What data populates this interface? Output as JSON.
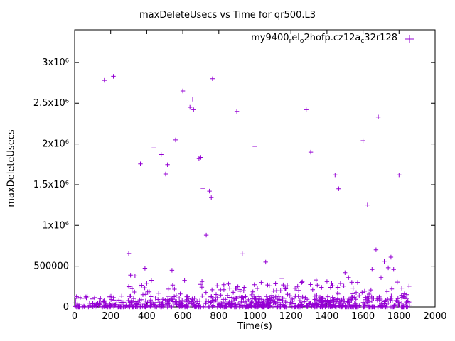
{
  "chart_data": {
    "type": "scatter",
    "title": "maxDeleteUsecs vs Time for qr500.L3",
    "xlabel": "Time(s)",
    "ylabel": "maxDeleteUsecs",
    "xlim": [
      0,
      2000
    ],
    "ylim": [
      0,
      3400000
    ],
    "grid": false,
    "legend_position": "top-right-inside",
    "xticks": [
      0,
      200,
      400,
      600,
      800,
      1000,
      1200,
      1400,
      1600,
      1800,
      2000
    ],
    "xtick_labels": [
      "0",
      "200",
      "400",
      "600",
      "800",
      "1000",
      "1200",
      "1400",
      "1600",
      "1800",
      "2000"
    ],
    "yticks": [
      0,
      500000,
      1000000,
      1500000,
      2000000,
      2500000,
      3000000
    ],
    "ytick_labels": [
      "0",
      "500000",
      "1x10⁶",
      "1.5x10⁶",
      "2x10⁶",
      "2.5x10⁶",
      "3x10⁶"
    ],
    "legend": {
      "parts": [
        {
          "t": "my9400"
        },
        {
          "s": "r"
        },
        {
          "t": "el"
        },
        {
          "s": "o"
        },
        {
          "t": "2hofp.cz12a"
        },
        {
          "s": "c"
        },
        {
          "t": "32r128"
        }
      ]
    },
    "marker": {
      "shape": "plus",
      "color": "#9400D3",
      "size": 3.2
    },
    "outliers": [
      [
        165,
        2780000
      ],
      [
        215,
        2830000
      ],
      [
        300,
        655000
      ],
      [
        310,
        390000
      ],
      [
        335,
        380000
      ],
      [
        300,
        250000
      ],
      [
        365,
        1755000
      ],
      [
        390,
        475000
      ],
      [
        400,
        290000
      ],
      [
        405,
        185000
      ],
      [
        440,
        1950000
      ],
      [
        480,
        1870000
      ],
      [
        505,
        1630000
      ],
      [
        515,
        1745000
      ],
      [
        540,
        450000
      ],
      [
        560,
        2050000
      ],
      [
        600,
        2650000
      ],
      [
        640,
        2450000
      ],
      [
        655,
        2550000
      ],
      [
        660,
        2420000
      ],
      [
        690,
        1820000
      ],
      [
        700,
        1835000
      ],
      [
        712,
        1455000
      ],
      [
        730,
        880000
      ],
      [
        748,
        1420000
      ],
      [
        758,
        1340000
      ],
      [
        765,
        2800000
      ],
      [
        790,
        260000
      ],
      [
        810,
        210000
      ],
      [
        860,
        230000
      ],
      [
        880,
        180000
      ],
      [
        900,
        2400000
      ],
      [
        930,
        650000
      ],
      [
        940,
        240000
      ],
      [
        1000,
        1970000
      ],
      [
        1035,
        300000
      ],
      [
        1060,
        550000
      ],
      [
        1080,
        260000
      ],
      [
        1120,
        200000
      ],
      [
        1150,
        350000
      ],
      [
        1180,
        260000
      ],
      [
        1230,
        230000
      ],
      [
        1260,
        300000
      ],
      [
        1285,
        2420000
      ],
      [
        1310,
        1900000
      ],
      [
        1340,
        330000
      ],
      [
        1370,
        240000
      ],
      [
        1400,
        310000
      ],
      [
        1430,
        260000
      ],
      [
        1445,
        1620000
      ],
      [
        1465,
        1450000
      ],
      [
        1500,
        420000
      ],
      [
        1520,
        360000
      ],
      [
        1545,
        230000
      ],
      [
        1570,
        300000
      ],
      [
        1600,
        2040000
      ],
      [
        1625,
        1250000
      ],
      [
        1650,
        460000
      ],
      [
        1672,
        700000
      ],
      [
        1685,
        2330000
      ],
      [
        1700,
        360000
      ],
      [
        1718,
        560000
      ],
      [
        1740,
        480000
      ],
      [
        1755,
        610000
      ],
      [
        1770,
        460000
      ],
      [
        1800,
        1620000
      ],
      [
        1815,
        230000
      ],
      [
        1830,
        160000
      ]
    ],
    "dense_band": {
      "seed": 7,
      "count": 700,
      "x_range": [
        3,
        1858
      ],
      "y_max": 135000,
      "skew": 3
    },
    "mid_scatter": {
      "seed": 99,
      "count": 150,
      "x_range": [
        300,
        1858
      ],
      "y_range": [
        60000,
        330000
      ],
      "y_bias": 1.8
    }
  }
}
